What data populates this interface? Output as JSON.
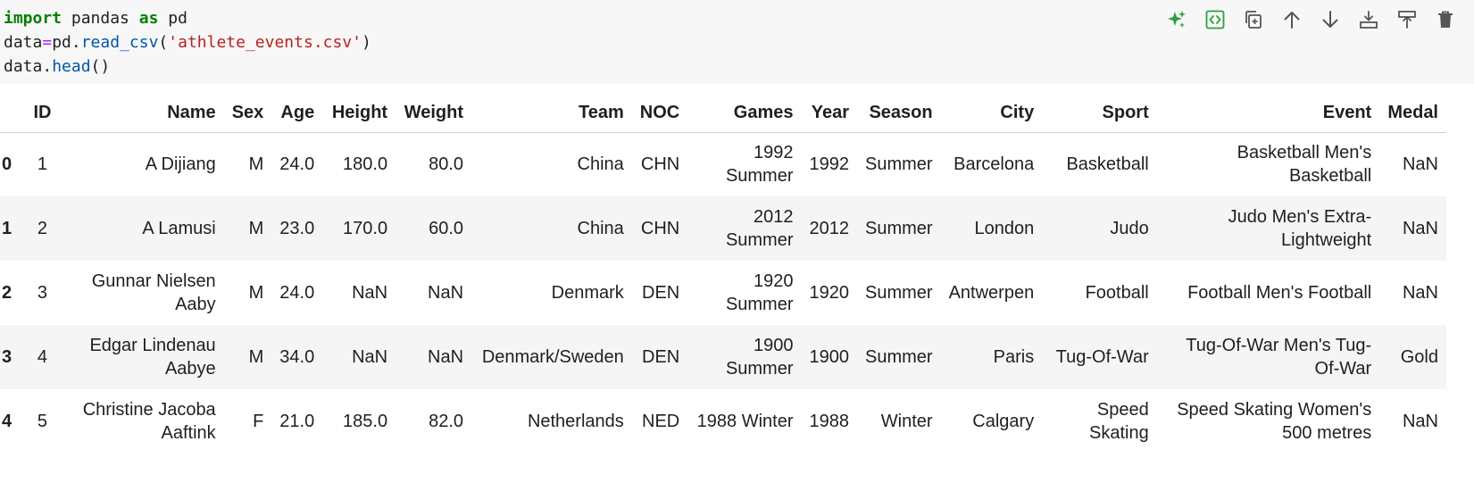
{
  "code": {
    "line1": {
      "kw1": "import",
      "mod": " pandas ",
      "kw2": "as",
      "alias": " pd"
    },
    "line2": {
      "var": "data",
      "eq": "=",
      "obj": "pd.",
      "fn": "read_csv",
      "open": "(",
      "str": "'athlete_events.csv'",
      "close": ")"
    },
    "line3": {
      "obj": "data.",
      "fn": "head",
      "parens": "()"
    }
  },
  "toolbar": {
    "icons": [
      "sparkle-icon",
      "code-toggle-icon",
      "copy-icon",
      "arrow-up-icon",
      "arrow-down-icon",
      "insert-below-icon",
      "merge-icon",
      "delete-icon"
    ],
    "accent": "#2e9e3e"
  },
  "table": {
    "headers": [
      "",
      "ID",
      "Name",
      "Sex",
      "Age",
      "Height",
      "Weight",
      "Team",
      "NOC",
      "Games",
      "Year",
      "Season",
      "City",
      "Sport",
      "Event",
      "Medal"
    ],
    "rows": [
      [
        "0",
        "1",
        "A Dijiang",
        "M",
        "24.0",
        "180.0",
        "80.0",
        "China",
        "CHN",
        "1992 Summer",
        "1992",
        "Summer",
        "Barcelona",
        "Basketball",
        "Basketball Men's Basketball",
        "NaN"
      ],
      [
        "1",
        "2",
        "A Lamusi",
        "M",
        "23.0",
        "170.0",
        "60.0",
        "China",
        "CHN",
        "2012 Summer",
        "2012",
        "Summer",
        "London",
        "Judo",
        "Judo Men's Extra-Lightweight",
        "NaN"
      ],
      [
        "2",
        "3",
        "Gunnar Nielsen Aaby",
        "M",
        "24.0",
        "NaN",
        "NaN",
        "Denmark",
        "DEN",
        "1920 Summer",
        "1920",
        "Summer",
        "Antwerpen",
        "Football",
        "Football Men's Football",
        "NaN"
      ],
      [
        "3",
        "4",
        "Edgar Lindenau Aabye",
        "M",
        "34.0",
        "NaN",
        "NaN",
        "Denmark/Sweden",
        "DEN",
        "1900 Summer",
        "1900",
        "Summer",
        "Paris",
        "Tug-Of-War",
        "Tug-Of-War Men's Tug-Of-War",
        "Gold"
      ],
      [
        "4",
        "5",
        "Christine Jacoba Aaftink",
        "F",
        "21.0",
        "185.0",
        "82.0",
        "Netherlands",
        "NED",
        "1988 Winter",
        "1988",
        "Winter",
        "Calgary",
        "Speed Skating",
        "Speed Skating Women's 500 metres",
        "NaN"
      ]
    ]
  }
}
